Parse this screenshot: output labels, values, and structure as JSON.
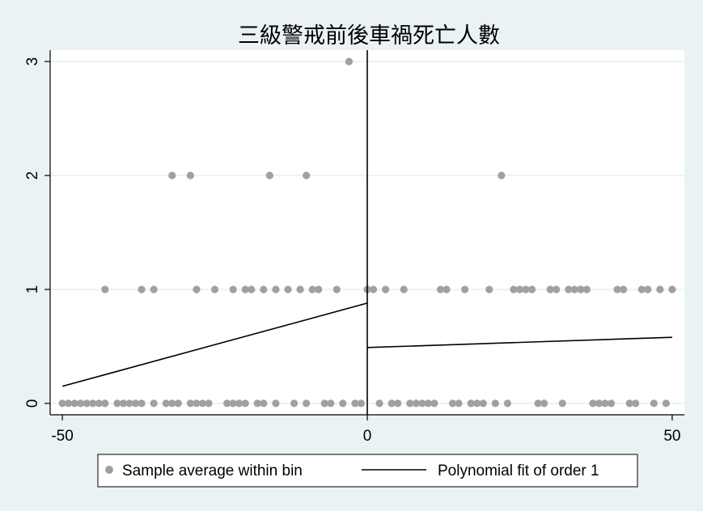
{
  "chart_data": {
    "type": "scatter",
    "title": "三級警戒前後車禍死亡人數",
    "xlabel": "",
    "ylabel": "",
    "xlim": [
      -52,
      52
    ],
    "ylim": [
      -0.1,
      3.1
    ],
    "x_ticks": [
      -50,
      0,
      50
    ],
    "x_tick_labels": [
      "-50",
      "0",
      "50"
    ],
    "y_ticks": [
      0,
      1,
      2,
      3
    ],
    "y_tick_labels": [
      "0",
      "1",
      "2",
      "3"
    ],
    "cutoff": 0,
    "grid": true,
    "legend_position": "bottom",
    "colors": {
      "background": "#eaf2f3",
      "plot_background": "#ffffff",
      "grid": "#e8eeee",
      "points": "#a0a0a0",
      "fit_line": "#000000"
    },
    "series": [
      {
        "name": "Sample average within bin",
        "kind": "scatter",
        "points": [
          [
            -50,
            0
          ],
          [
            -49,
            0
          ],
          [
            -48,
            0
          ],
          [
            -47,
            0
          ],
          [
            -46,
            0
          ],
          [
            -45,
            0
          ],
          [
            -44,
            0
          ],
          [
            -43,
            0
          ],
          [
            -41,
            0
          ],
          [
            -40,
            0
          ],
          [
            -39,
            0
          ],
          [
            -38,
            0
          ],
          [
            -37,
            0
          ],
          [
            -35,
            0
          ],
          [
            -33,
            0
          ],
          [
            -32,
            0
          ],
          [
            -31,
            0
          ],
          [
            -29,
            0
          ],
          [
            -28,
            0
          ],
          [
            -27,
            0
          ],
          [
            -26,
            0
          ],
          [
            -23,
            0
          ],
          [
            -22,
            0
          ],
          [
            -21,
            0
          ],
          [
            -20,
            0
          ],
          [
            -18,
            0
          ],
          [
            -17,
            0
          ],
          [
            -15,
            0
          ],
          [
            -12,
            0
          ],
          [
            -10,
            0
          ],
          [
            -7,
            0
          ],
          [
            -6,
            0
          ],
          [
            -4,
            0
          ],
          [
            -2,
            0
          ],
          [
            -1,
            0
          ],
          [
            2,
            0
          ],
          [
            4,
            0
          ],
          [
            5,
            0
          ],
          [
            7,
            0
          ],
          [
            8,
            0
          ],
          [
            9,
            0
          ],
          [
            10,
            0
          ],
          [
            11,
            0
          ],
          [
            14,
            0
          ],
          [
            15,
            0
          ],
          [
            17,
            0
          ],
          [
            18,
            0
          ],
          [
            19,
            0
          ],
          [
            21,
            0
          ],
          [
            23,
            0
          ],
          [
            28,
            0
          ],
          [
            29,
            0
          ],
          [
            32,
            0
          ],
          [
            37,
            0
          ],
          [
            38,
            0
          ],
          [
            39,
            0
          ],
          [
            40,
            0
          ],
          [
            43,
            0
          ],
          [
            44,
            0
          ],
          [
            47,
            0
          ],
          [
            49,
            0
          ],
          [
            -43,
            1
          ],
          [
            -37,
            1
          ],
          [
            -35,
            1
          ],
          [
            -28,
            1
          ],
          [
            -25,
            1
          ],
          [
            -22,
            1
          ],
          [
            -20,
            1
          ],
          [
            -19,
            1
          ],
          [
            -17,
            1
          ],
          [
            -15,
            1
          ],
          [
            -13,
            1
          ],
          [
            -11,
            1
          ],
          [
            -9,
            1
          ],
          [
            -8,
            1
          ],
          [
            -5,
            1
          ],
          [
            0,
            1
          ],
          [
            1,
            1
          ],
          [
            3,
            1
          ],
          [
            6,
            1
          ],
          [
            12,
            1
          ],
          [
            13,
            1
          ],
          [
            16,
            1
          ],
          [
            20,
            1
          ],
          [
            24,
            1
          ],
          [
            25,
            1
          ],
          [
            26,
            1
          ],
          [
            27,
            1
          ],
          [
            30,
            1
          ],
          [
            31,
            1
          ],
          [
            33,
            1
          ],
          [
            34,
            1
          ],
          [
            35,
            1
          ],
          [
            36,
            1
          ],
          [
            41,
            1
          ],
          [
            42,
            1
          ],
          [
            45,
            1
          ],
          [
            46,
            1
          ],
          [
            48,
            1
          ],
          [
            50,
            1
          ],
          [
            -32,
            2
          ],
          [
            -29,
            2
          ],
          [
            -16,
            2
          ],
          [
            -10,
            2
          ],
          [
            22,
            2
          ],
          [
            -3,
            3
          ]
        ]
      },
      {
        "name": "Polynomial fit of order 1",
        "kind": "line",
        "segments": [
          [
            [
              -50,
              0.15
            ],
            [
              0,
              0.88
            ]
          ],
          [
            [
              0,
              0.49
            ],
            [
              50,
              0.58
            ]
          ]
        ]
      }
    ]
  },
  "legend": {
    "items": [
      {
        "label": "Sample average within bin",
        "marker": "dot"
      },
      {
        "label": "Polynomial fit of order 1",
        "marker": "line"
      }
    ]
  }
}
